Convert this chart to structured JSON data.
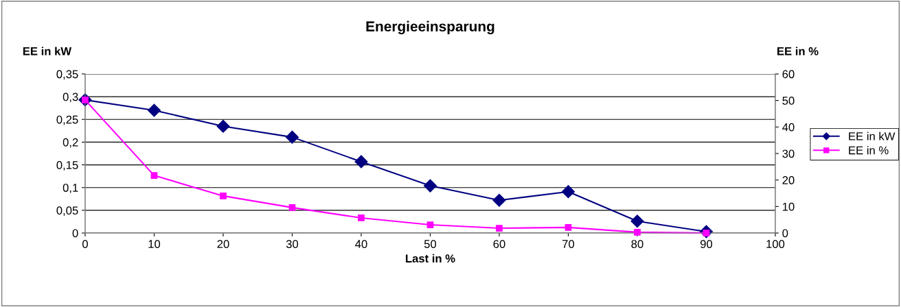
{
  "chart_data": {
    "type": "line",
    "title": "Energieeinsparung",
    "xlabel": "Last in %",
    "ylabel": "EE in kW",
    "y2label": "EE in %",
    "x": [
      0,
      10,
      20,
      30,
      40,
      50,
      60,
      70,
      80,
      90
    ],
    "series": [
      {
        "name": "EE in kW",
        "color": "#000080",
        "marker": "diamond",
        "values": [
          0.293,
          0.27,
          0.235,
          0.211,
          0.157,
          0.104,
          0.072,
          0.091,
          0.026,
          0.003
        ]
      },
      {
        "name": "EE in %",
        "color": "#ff00ff",
        "marker": "square",
        "axis": "y2",
        "values": [
          50.2,
          21.7,
          14.0,
          9.6,
          5.7,
          3.1,
          1.8,
          2.1,
          0.3,
          0
        ]
      }
    ],
    "xlim": [
      0,
      100
    ],
    "xticks": [
      0,
      10,
      20,
      30,
      40,
      50,
      60,
      70,
      80,
      90,
      100
    ],
    "ylim": [
      0,
      0.35
    ],
    "yticks": [
      0,
      {
        "value": 0.05,
        "label": "0,05"
      },
      {
        "value": 0.1,
        "label": "0,1"
      },
      {
        "value": 0.15,
        "label": "0,15"
      },
      {
        "value": 0.2,
        "label": "0,2"
      },
      {
        "value": 0.25,
        "label": "0,25"
      },
      {
        "value": 0.3,
        "label": "0,3"
      },
      {
        "value": 0.35,
        "label": "0,35"
      }
    ],
    "y2lim": [
      0,
      60
    ],
    "y2ticks": [
      0,
      10,
      20,
      30,
      40,
      50,
      60
    ],
    "grid": "y",
    "legend": "right",
    "line_style": "solid"
  }
}
